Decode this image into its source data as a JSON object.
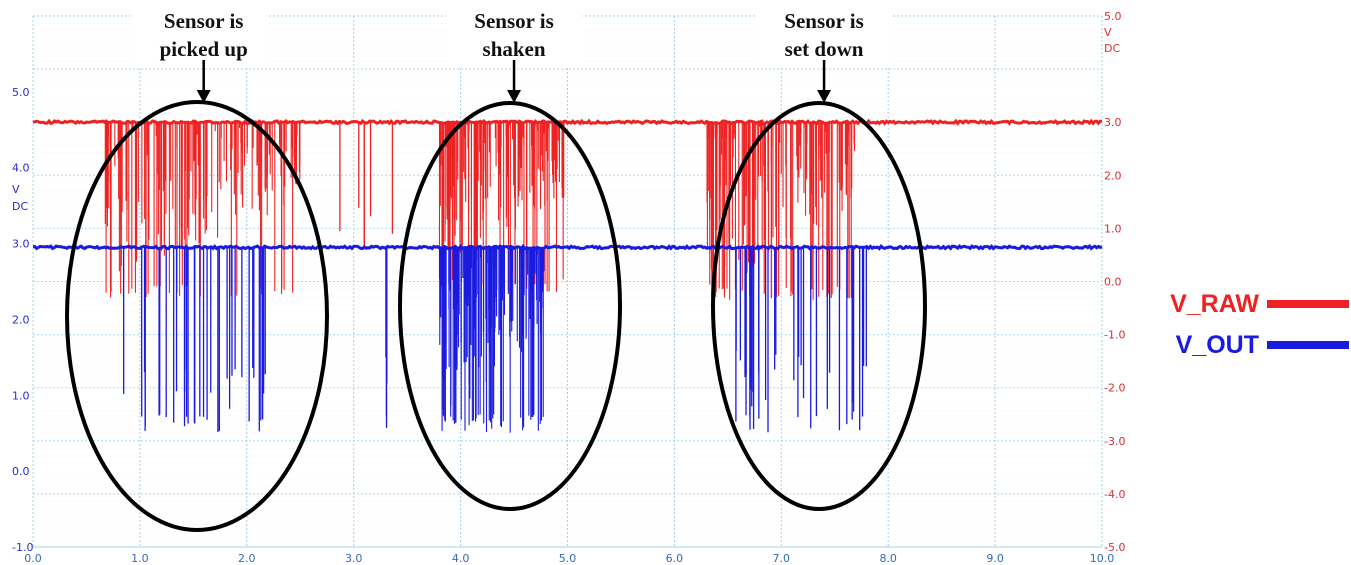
{
  "chart_data": {
    "type": "line",
    "x_range": [
      0,
      10
    ],
    "x_ticks": [
      "0.0",
      "1.0",
      "2.0",
      "3.0",
      "4.0",
      "5.0",
      "6.0",
      "7.0",
      "8.0",
      "9.0",
      "10.0"
    ],
    "left_axis": {
      "unit_lines": [
        "V",
        "DC"
      ],
      "range": [
        -1,
        6
      ],
      "ticks": [
        "5.0",
        "4.0",
        "3.0",
        "2.0",
        "1.0",
        "0.0",
        "-1.0"
      ],
      "color": "#2a2ad0"
    },
    "right_axis": {
      "top_label_lines": [
        "5.0",
        "V",
        "DC"
      ],
      "range": [
        -5,
        5
      ],
      "ticks": [
        "3.0",
        "2.0",
        "1.0",
        "0.0",
        "-1.0",
        "-2.0",
        "-3.0",
        "-4.0",
        "-5.0"
      ],
      "color": "#d83030"
    },
    "grid": true,
    "series": [
      {
        "name": "V_RAW",
        "axis": "right",
        "color": "#ee2222",
        "baseline": 3.0,
        "bursts": [
          {
            "start": 0.65,
            "end": 2.5,
            "min": -0.3,
            "density": "high"
          },
          {
            "start": 2.8,
            "end": 3.4,
            "min": 0.6,
            "density": "low"
          },
          {
            "start": 3.8,
            "end": 5.0,
            "min": -0.2,
            "density": "high"
          },
          {
            "start": 6.3,
            "end": 7.7,
            "min": -0.35,
            "density": "high"
          }
        ]
      },
      {
        "name": "V_OUT",
        "axis": "left",
        "color": "#1a1ae0",
        "baseline": 2.95,
        "bursts": [
          {
            "start": 0.65,
            "end": 2.2,
            "min": 0.5,
            "density": "medium"
          },
          {
            "start": 3.3,
            "end": 3.3,
            "min": 0.5,
            "density": "low"
          },
          {
            "start": 3.8,
            "end": 4.8,
            "min": 0.5,
            "density": "high"
          },
          {
            "start": 6.5,
            "end": 7.8,
            "min": 0.5,
            "density": "medium"
          }
        ]
      }
    ],
    "annotations": [
      {
        "lines": [
          "Sensor is",
          "picked up"
        ],
        "x": 1.55
      },
      {
        "lines": [
          "Sensor is",
          "shaken"
        ],
        "x": 4.5
      },
      {
        "lines": [
          "Sensor is",
          "set down"
        ],
        "x": 7.4
      }
    ],
    "legend": {
      "placement": "right",
      "items": [
        {
          "label": "V_RAW",
          "color": "#ee2222"
        },
        {
          "label": "V_OUT",
          "color": "#1a1ae0"
        }
      ]
    }
  }
}
